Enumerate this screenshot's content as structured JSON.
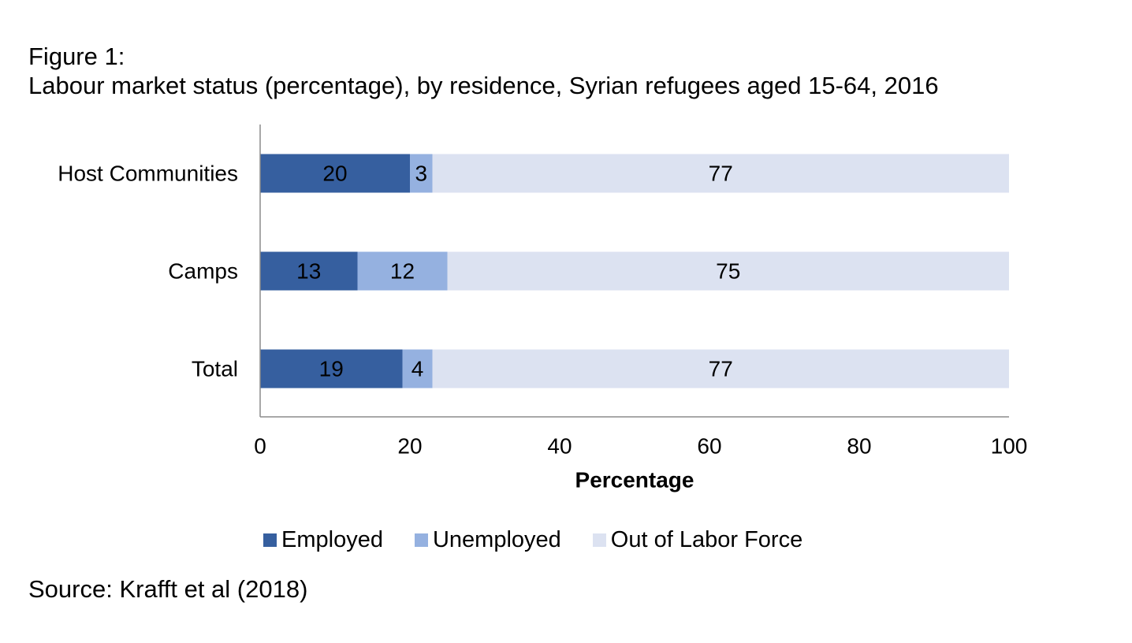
{
  "figure": {
    "label": "Figure 1:",
    "title": "Labour market status (percentage), by residence, Syrian refugees aged 15-64, 2016",
    "source": "Source: Krafft et al (2018)"
  },
  "chart_data": {
    "type": "bar",
    "orientation": "horizontal",
    "stacked": true,
    "categories": [
      "Host Communities",
      "Camps",
      "Total"
    ],
    "series": [
      {
        "name": "Employed",
        "values": [
          20,
          13,
          19
        ],
        "color": "#365f9f"
      },
      {
        "name": "Unemployed",
        "values": [
          3,
          12,
          4
        ],
        "color": "#95b1e0"
      },
      {
        "name": "Out of Labor Force",
        "values": [
          77,
          75,
          77
        ],
        "color": "#dce2f1"
      }
    ],
    "xlabel": "Percentage",
    "ylabel": "",
    "xlim": [
      0,
      100
    ],
    "xticks": [
      "0",
      "20",
      "40",
      "60",
      "80",
      "100"
    ],
    "grid": false,
    "legend": "bottom",
    "data_labels": true
  }
}
